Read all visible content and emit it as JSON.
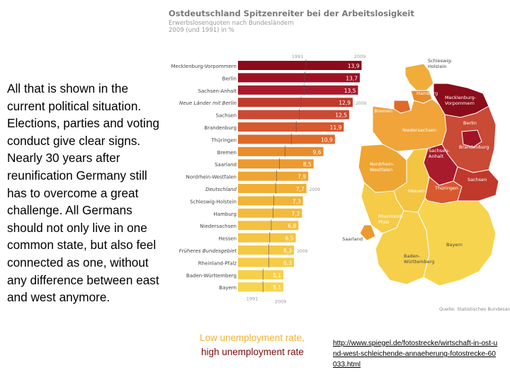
{
  "slide": {
    "body_text": "All that is shown in the current political situation. Elections, parties and voting conduct give clear signs. Nearly 30 years after reunification Germany still has to overcome a great challenge. All Germans should not only live in one common state, but also feel connected as one, without any difference between east and west anymore.",
    "legend_low": "Low unemployment rate,",
    "legend_high": "high unemployment rate",
    "link": "http://www.spiegel.de/fotostrecke/wirtschaft-in-ost-und-west-schleichende-annaeherung-fotostrecke-60033.html"
  },
  "chart_data": {
    "type": "bar",
    "title": "Ostdeutschland Spitzenreiter bei der Arbeitslosigkeit",
    "subtitle_line1": "Erwerbslosenquoten nach Bundesländern",
    "subtitle_line2": "2009 (und 1991) in %",
    "year_labels": {
      "old": "1991",
      "new": "2009"
    },
    "categories": [
      "Mecklenburg-Vorpommern",
      "Berlin",
      "Sachsen-Anhalt",
      "Neue Länder mit Berlin",
      "Sachsen",
      "Brandenburg",
      "Thüringen",
      "Bremen",
      "Saarland",
      "Nordrhein-Westfalen",
      "Deutschland",
      "Schleswig-Holstein",
      "Hamburg",
      "Niedersachsen",
      "Hessen",
      "Früheres Bundesgebiet",
      "Rheinland-Pfalz",
      "Baden-Württemberg",
      "Bayern"
    ],
    "values": [
      13.9,
      13.7,
      13.5,
      12.9,
      12.5,
      11.9,
      10.9,
      9.6,
      8.5,
      7.9,
      7.7,
      7.3,
      7.2,
      6.8,
      6.5,
      6.3,
      6.3,
      5.1,
      5.1
    ],
    "value_labels": [
      "13,9",
      "13,7",
      "13,5",
      "12,9",
      "12,5",
      "11,9",
      "10,9",
      "9,6",
      "8,5",
      "7,9",
      "7,7",
      "7,3",
      "7,2",
      "6,8",
      "6,5",
      "6,3",
      "6,3",
      "5,1",
      "5,1"
    ],
    "highlighted": [
      "Neue Länder mit Berlin",
      "Deutschland",
      "Früheres Bundesgebiet"
    ],
    "colors": [
      "#8b0c1a",
      "#9c1224",
      "#a81b2d",
      "#c0392b",
      "#c94a35",
      "#d8582f",
      "#e06a2a",
      "#e88d2c",
      "#ec9a2f",
      "#eea532",
      "#f0ae35",
      "#f0b43a",
      "#f2bb3d",
      "#f3c040",
      "#f4c543",
      "#f4c845",
      "#f5cb47",
      "#f6d04b",
      "#f7d44e"
    ],
    "ylim": [
      0,
      14.5
    ],
    "source": "Quelle: Statistisches Bundesamt"
  },
  "map": {
    "labels": [
      {
        "id": "sh",
        "text": "Schleswig-\nHolstein"
      },
      {
        "id": "mv",
        "text": "Mecklenburg-\nVorpommern"
      },
      {
        "id": "hh",
        "text": "Hamburg"
      },
      {
        "id": "hb",
        "text": "Bremen"
      },
      {
        "id": "ni",
        "text": "Niedersachsen"
      },
      {
        "id": "be",
        "text": "Berlin"
      },
      {
        "id": "bb",
        "text": "Brandenburg"
      },
      {
        "id": "st",
        "text": "Sachsen-\nAnhalt"
      },
      {
        "id": "nw",
        "text": "Nordrhein-\nWestfalen"
      },
      {
        "id": "he",
        "text": "Hessen"
      },
      {
        "id": "th",
        "text": "Thüringen"
      },
      {
        "id": "sn",
        "text": "Sachsen"
      },
      {
        "id": "rp",
        "text": "Rheinland-\nPfalz"
      },
      {
        "id": "sl",
        "text": "Saarland"
      },
      {
        "id": "bw",
        "text": "Baden-\nWürttemberg"
      },
      {
        "id": "by",
        "text": "Bayern"
      }
    ]
  }
}
